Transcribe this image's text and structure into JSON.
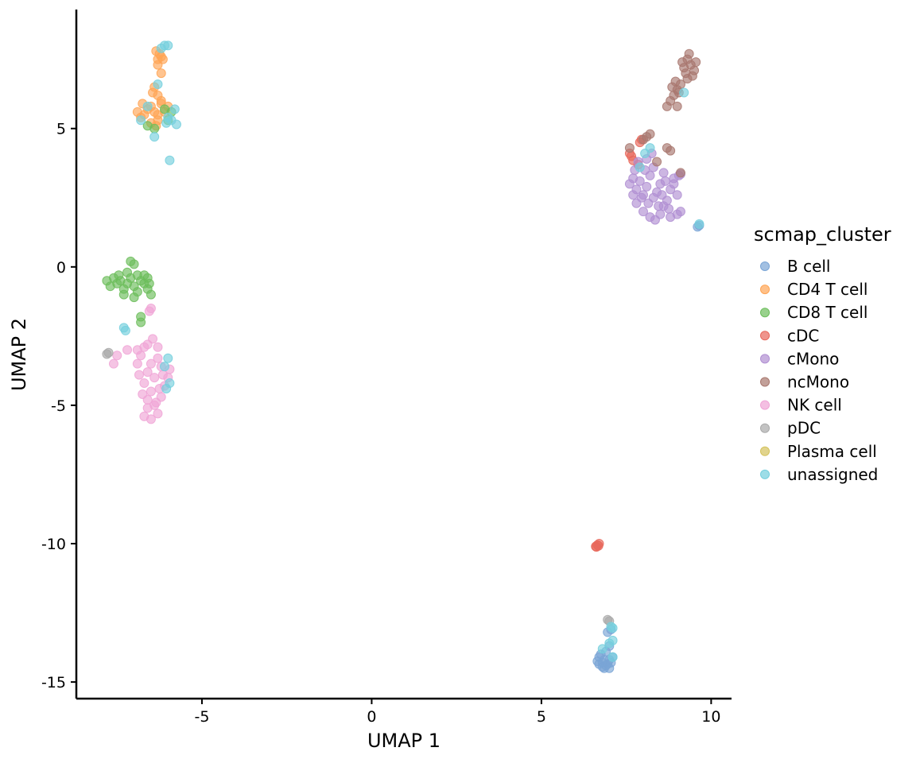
{
  "chart_data": {
    "type": "scatter",
    "title": "",
    "xlabel": "UMAP 1",
    "ylabel": "UMAP 2",
    "xlim": [
      -8.7,
      10.6
    ],
    "ylim": [
      -15.6,
      9.3
    ],
    "xticks": [
      -5,
      0,
      5,
      10
    ],
    "yticks": [
      -15,
      -10,
      -5,
      0,
      5
    ],
    "xtick_labels": [
      "-5",
      "0",
      "5",
      "10"
    ],
    "ytick_labels": [
      "-15",
      "-10",
      "-5",
      "0",
      "5"
    ],
    "grid": false,
    "legend": {
      "title": "scmap_cluster",
      "position": "right"
    },
    "series": [
      {
        "name": "B cell",
        "color": "#7AA5D6",
        "points": [
          [
            6.8,
            -14.3
          ],
          [
            6.7,
            -14.1
          ],
          [
            6.9,
            -14.4
          ],
          [
            7.0,
            -14.2
          ],
          [
            6.85,
            -14.5
          ],
          [
            6.75,
            -14.0
          ],
          [
            7.1,
            -14.1
          ],
          [
            6.95,
            -14.35
          ],
          [
            6.8,
            -14.45
          ],
          [
            7.05,
            -14.3
          ],
          [
            6.9,
            -13.9
          ],
          [
            7.0,
            -13.7
          ],
          [
            6.95,
            -13.2
          ],
          [
            7.05,
            -13.1
          ],
          [
            6.7,
            -14.35
          ],
          [
            6.85,
            -14.2
          ],
          [
            7.0,
            -14.5
          ],
          [
            6.65,
            -14.25
          ],
          [
            9.65,
            1.5
          ],
          [
            9.6,
            1.45
          ]
        ]
      },
      {
        "name": "CD4 T cell",
        "color": "#FFA555",
        "points": [
          [
            -6.3,
            7.5
          ],
          [
            -6.2,
            7.6
          ],
          [
            -6.35,
            7.8
          ],
          [
            -6.25,
            7.7
          ],
          [
            -6.15,
            7.5
          ],
          [
            -6.3,
            7.3
          ],
          [
            -6.2,
            7.0
          ],
          [
            -6.4,
            6.5
          ],
          [
            -6.3,
            6.2
          ],
          [
            -6.2,
            5.9
          ],
          [
            -6.5,
            5.8
          ],
          [
            -6.6,
            5.7
          ],
          [
            -6.4,
            5.6
          ],
          [
            -6.7,
            5.5
          ],
          [
            -6.8,
            5.4
          ],
          [
            -6.3,
            5.5
          ],
          [
            -6.1,
            5.6
          ],
          [
            -6.0,
            5.8
          ],
          [
            -6.5,
            5.2
          ],
          [
            -6.3,
            5.3
          ],
          [
            -6.2,
            6.0
          ],
          [
            -6.45,
            6.3
          ],
          [
            -6.9,
            5.6
          ],
          [
            -6.75,
            5.9
          ],
          [
            -6.35,
            5.1
          ]
        ]
      },
      {
        "name": "CD8 T cell",
        "color": "#6CBD5B",
        "points": [
          [
            -7.2,
            -0.6
          ],
          [
            -7.4,
            -0.5
          ],
          [
            -7.1,
            -0.4
          ],
          [
            -7.0,
            -0.7
          ],
          [
            -6.8,
            -0.5
          ],
          [
            -6.9,
            -0.3
          ],
          [
            -7.3,
            -0.8
          ],
          [
            -7.5,
            -0.6
          ],
          [
            -7.6,
            -0.4
          ],
          [
            -7.7,
            -0.7
          ],
          [
            -7.8,
            -0.5
          ],
          [
            -6.7,
            -0.6
          ],
          [
            -6.6,
            -0.8
          ],
          [
            -6.5,
            -1.0
          ],
          [
            -6.9,
            -0.9
          ],
          [
            -7.0,
            -1.1
          ],
          [
            -7.2,
            -0.2
          ],
          [
            -7.0,
            0.1
          ],
          [
            -7.1,
            0.2
          ],
          [
            -6.7,
            -0.3
          ],
          [
            -6.8,
            -1.8
          ],
          [
            -6.8,
            -2.0
          ],
          [
            -6.55,
            -0.6
          ],
          [
            -7.3,
            -1.0
          ],
          [
            -7.45,
            -0.3
          ],
          [
            -6.6,
            -0.4
          ],
          [
            -5.9,
            5.6
          ],
          [
            -6.0,
            5.3
          ],
          [
            -6.4,
            5.0
          ],
          [
            -6.6,
            5.1
          ],
          [
            -6.1,
            5.7
          ]
        ]
      },
      {
        "name": "cDC",
        "color": "#E8685C",
        "points": [
          [
            6.6,
            -10.1
          ],
          [
            6.65,
            -10.05
          ],
          [
            6.7,
            -10.0
          ],
          [
            6.62,
            -10.12
          ],
          [
            6.68,
            -10.08
          ],
          [
            7.6,
            4.1
          ],
          [
            7.65,
            4.0
          ],
          [
            7.7,
            3.85
          ],
          [
            7.9,
            4.5
          ],
          [
            7.95,
            4.6
          ],
          [
            7.85,
            3.7
          ]
        ]
      },
      {
        "name": "cMono",
        "color": "#B08FD2",
        "points": [
          [
            7.6,
            3.0
          ],
          [
            7.7,
            3.2
          ],
          [
            7.8,
            2.8
          ],
          [
            7.9,
            3.1
          ],
          [
            8.0,
            2.6
          ],
          [
            8.1,
            2.9
          ],
          [
            8.2,
            3.3
          ],
          [
            8.3,
            2.5
          ],
          [
            8.4,
            2.7
          ],
          [
            8.5,
            3.0
          ],
          [
            8.6,
            2.2
          ],
          [
            8.7,
            2.4
          ],
          [
            8.8,
            2.8
          ],
          [
            8.9,
            3.2
          ],
          [
            9.0,
            2.6
          ],
          [
            9.1,
            2.0
          ],
          [
            8.0,
            2.0
          ],
          [
            8.2,
            1.8
          ],
          [
            8.5,
            1.9
          ],
          [
            8.8,
            1.8
          ],
          [
            7.8,
            2.3
          ],
          [
            7.7,
            2.6
          ],
          [
            8.3,
            3.6
          ],
          [
            8.6,
            3.4
          ],
          [
            8.9,
            3.0
          ],
          [
            9.05,
            3.3
          ],
          [
            7.75,
            3.5
          ],
          [
            8.05,
            3.5
          ],
          [
            8.45,
            2.2
          ],
          [
            8.75,
            2.1
          ],
          [
            8.35,
            1.7
          ],
          [
            8.15,
            2.3
          ],
          [
            7.95,
            2.5
          ],
          [
            8.55,
            2.6
          ],
          [
            9.0,
            1.9
          ],
          [
            8.65,
            3.1
          ],
          [
            8.25,
            4.1
          ],
          [
            8.1,
            3.9
          ],
          [
            7.85,
            3.8
          ],
          [
            9.1,
            3.35
          ]
        ]
      },
      {
        "name": "ncMono",
        "color": "#A8776E",
        "points": [
          [
            9.2,
            7.2
          ],
          [
            9.3,
            7.5
          ],
          [
            9.4,
            7.3
          ],
          [
            9.5,
            7.1
          ],
          [
            9.35,
            7.7
          ],
          [
            9.25,
            7.0
          ],
          [
            9.45,
            6.9
          ],
          [
            9.15,
            7.4
          ],
          [
            9.55,
            7.4
          ],
          [
            9.3,
            6.8
          ],
          [
            9.1,
            6.6
          ],
          [
            9.0,
            6.4
          ],
          [
            8.9,
            6.2
          ],
          [
            8.8,
            6.0
          ],
          [
            8.7,
            5.8
          ],
          [
            8.85,
            6.5
          ],
          [
            8.95,
            6.7
          ],
          [
            9.05,
            6.3
          ],
          [
            9.0,
            5.8
          ],
          [
            8.1,
            4.7
          ],
          [
            8.2,
            4.8
          ],
          [
            8.0,
            4.6
          ],
          [
            8.8,
            4.2
          ],
          [
            8.7,
            4.3
          ],
          [
            9.1,
            3.4
          ],
          [
            8.4,
            3.8
          ],
          [
            7.6,
            4.3
          ]
        ]
      },
      {
        "name": "NK cell",
        "color": "#F0A4D6",
        "points": [
          [
            -6.5,
            -3.5
          ],
          [
            -6.6,
            -3.8
          ],
          [
            -6.4,
            -4.0
          ],
          [
            -6.7,
            -4.2
          ],
          [
            -6.3,
            -3.3
          ],
          [
            -6.2,
            -3.6
          ],
          [
            -6.8,
            -3.2
          ],
          [
            -6.9,
            -3.5
          ],
          [
            -6.5,
            -4.5
          ],
          [
            -6.6,
            -4.8
          ],
          [
            -6.4,
            -5.0
          ],
          [
            -6.3,
            -5.3
          ],
          [
            -6.5,
            -5.5
          ],
          [
            -6.7,
            -5.4
          ],
          [
            -6.2,
            -4.7
          ],
          [
            -6.1,
            -4.3
          ],
          [
            -6.0,
            -4.0
          ],
          [
            -6.3,
            -2.9
          ],
          [
            -6.6,
            -2.8
          ],
          [
            -6.9,
            -3.0
          ],
          [
            -7.2,
            -3.0
          ],
          [
            -7.5,
            -3.2
          ],
          [
            -7.6,
            -3.5
          ],
          [
            -6.45,
            -2.6
          ],
          [
            -6.55,
            -1.6
          ],
          [
            -6.5,
            -1.5
          ],
          [
            -6.75,
            -4.6
          ],
          [
            -6.35,
            -4.9
          ],
          [
            -6.15,
            -3.9
          ],
          [
            -5.95,
            -3.7
          ],
          [
            -6.85,
            -3.9
          ],
          [
            -6.6,
            -5.1
          ],
          [
            -6.25,
            -4.4
          ],
          [
            -6.7,
            -2.9
          ]
        ]
      },
      {
        "name": "pDC",
        "color": "#A9A9A9",
        "points": [
          [
            6.95,
            -12.75
          ],
          [
            7.0,
            -12.8
          ],
          [
            -7.8,
            -3.15
          ],
          [
            -7.75,
            -3.1
          ]
        ]
      },
      {
        "name": "Plasma cell",
        "color": "#D4C25C",
        "points": []
      },
      {
        "name": "unassigned",
        "color": "#74CFDD",
        "points": [
          [
            -6.1,
            8.0
          ],
          [
            -6.0,
            8.0
          ],
          [
            -6.2,
            7.9
          ],
          [
            -5.8,
            5.7
          ],
          [
            -5.9,
            5.3
          ],
          [
            -5.75,
            5.15
          ],
          [
            -6.05,
            5.2
          ],
          [
            -6.4,
            4.7
          ],
          [
            -6.8,
            5.3
          ],
          [
            -6.6,
            5.8
          ],
          [
            -6.3,
            6.6
          ],
          [
            -6.0,
            5.4
          ],
          [
            -5.95,
            3.85
          ],
          [
            -6.0,
            -3.3
          ],
          [
            -5.95,
            -4.2
          ],
          [
            -6.05,
            -4.4
          ],
          [
            -6.1,
            -3.6
          ],
          [
            -7.3,
            -2.2
          ],
          [
            -7.25,
            -2.3
          ],
          [
            7.0,
            -13.6
          ],
          [
            7.1,
            -13.5
          ],
          [
            7.05,
            -13.0
          ],
          [
            7.1,
            -13.05
          ],
          [
            6.8,
            -13.8
          ],
          [
            7.1,
            -14.1
          ],
          [
            7.9,
            3.6
          ],
          [
            8.05,
            4.1
          ],
          [
            8.2,
            4.3
          ],
          [
            9.2,
            6.3
          ],
          [
            9.65,
            1.55
          ]
        ]
      }
    ]
  }
}
